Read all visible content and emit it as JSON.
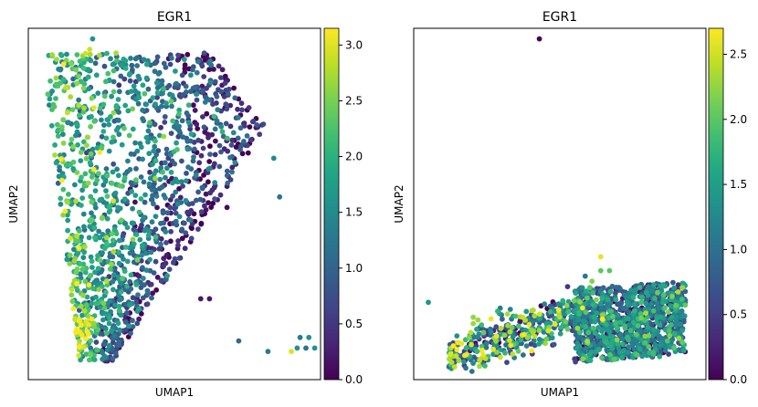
{
  "chart_data": [
    {
      "type": "scatter",
      "title": "EGR1",
      "xlabel": "UMAP1",
      "ylabel": "UMAP2",
      "colorbar": {
        "colormap": "viridis",
        "range": [
          0.0,
          3.15
        ],
        "ticks": [
          "0.0",
          "0.5",
          "1.0",
          "1.5",
          "2.0",
          "2.5",
          "3.0"
        ]
      },
      "point_count_approx": 1600,
      "notable_points": [
        {
          "x": 0.22,
          "y": 0.97,
          "value": 1.6
        },
        {
          "x": 0.84,
          "y": 0.63,
          "value": 1.5
        },
        {
          "x": 0.86,
          "y": 0.52,
          "value": 1.2
        },
        {
          "x": 0.9,
          "y": 0.08,
          "value": 3.0
        },
        {
          "x": 0.92,
          "y": 0.09,
          "value": 1.6
        }
      ]
    },
    {
      "type": "scatter",
      "title": "EGR1",
      "xlabel": "UMAP1",
      "ylabel": "UMAP2",
      "colorbar": {
        "colormap": "viridis",
        "range": [
          0.0,
          2.7
        ],
        "ticks": [
          "0.0",
          "0.5",
          "1.0",
          "1.5",
          "2.0",
          "2.5"
        ]
      },
      "point_count_approx": 1500,
      "notable_points": [
        {
          "x": 0.43,
          "y": 0.97,
          "value": 0.0
        },
        {
          "x": 0.05,
          "y": 0.22,
          "value": 1.4
        },
        {
          "x": 0.64,
          "y": 0.35,
          "value": 2.6
        }
      ]
    }
  ]
}
